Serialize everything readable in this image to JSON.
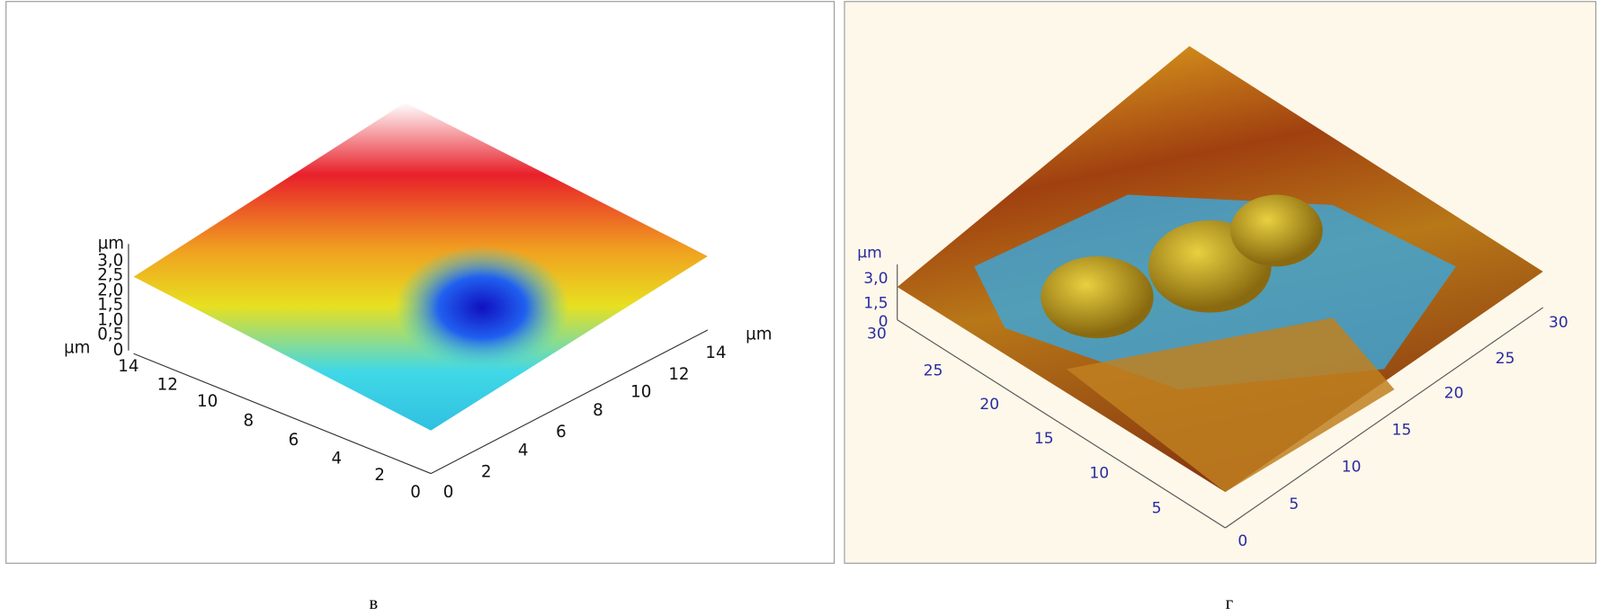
{
  "panels": [
    {
      "caption": "в",
      "z_unit": "µm",
      "z_ticks": [
        "3,0",
        "2,5",
        "2,0",
        "1,5",
        "1,0",
        "0,5",
        "0"
      ],
      "y_unit": "µm",
      "y_ticks": [
        "14",
        "12",
        "10",
        "8",
        "6",
        "4",
        "2",
        "0"
      ],
      "x_ticks": [
        "0",
        "2",
        "4",
        "6",
        "8",
        "10",
        "12",
        "14"
      ],
      "x_unit": "µm"
    },
    {
      "caption": "г",
      "z_unit": "µm",
      "z_ticks": [
        "3,0",
        "1,5",
        "0"
      ],
      "y_ticks": [
        "30",
        "25",
        "20",
        "15",
        "10",
        "5",
        "0"
      ],
      "x_ticks": [
        "5",
        "10",
        "15",
        "20",
        "25",
        "30"
      ]
    }
  ]
}
